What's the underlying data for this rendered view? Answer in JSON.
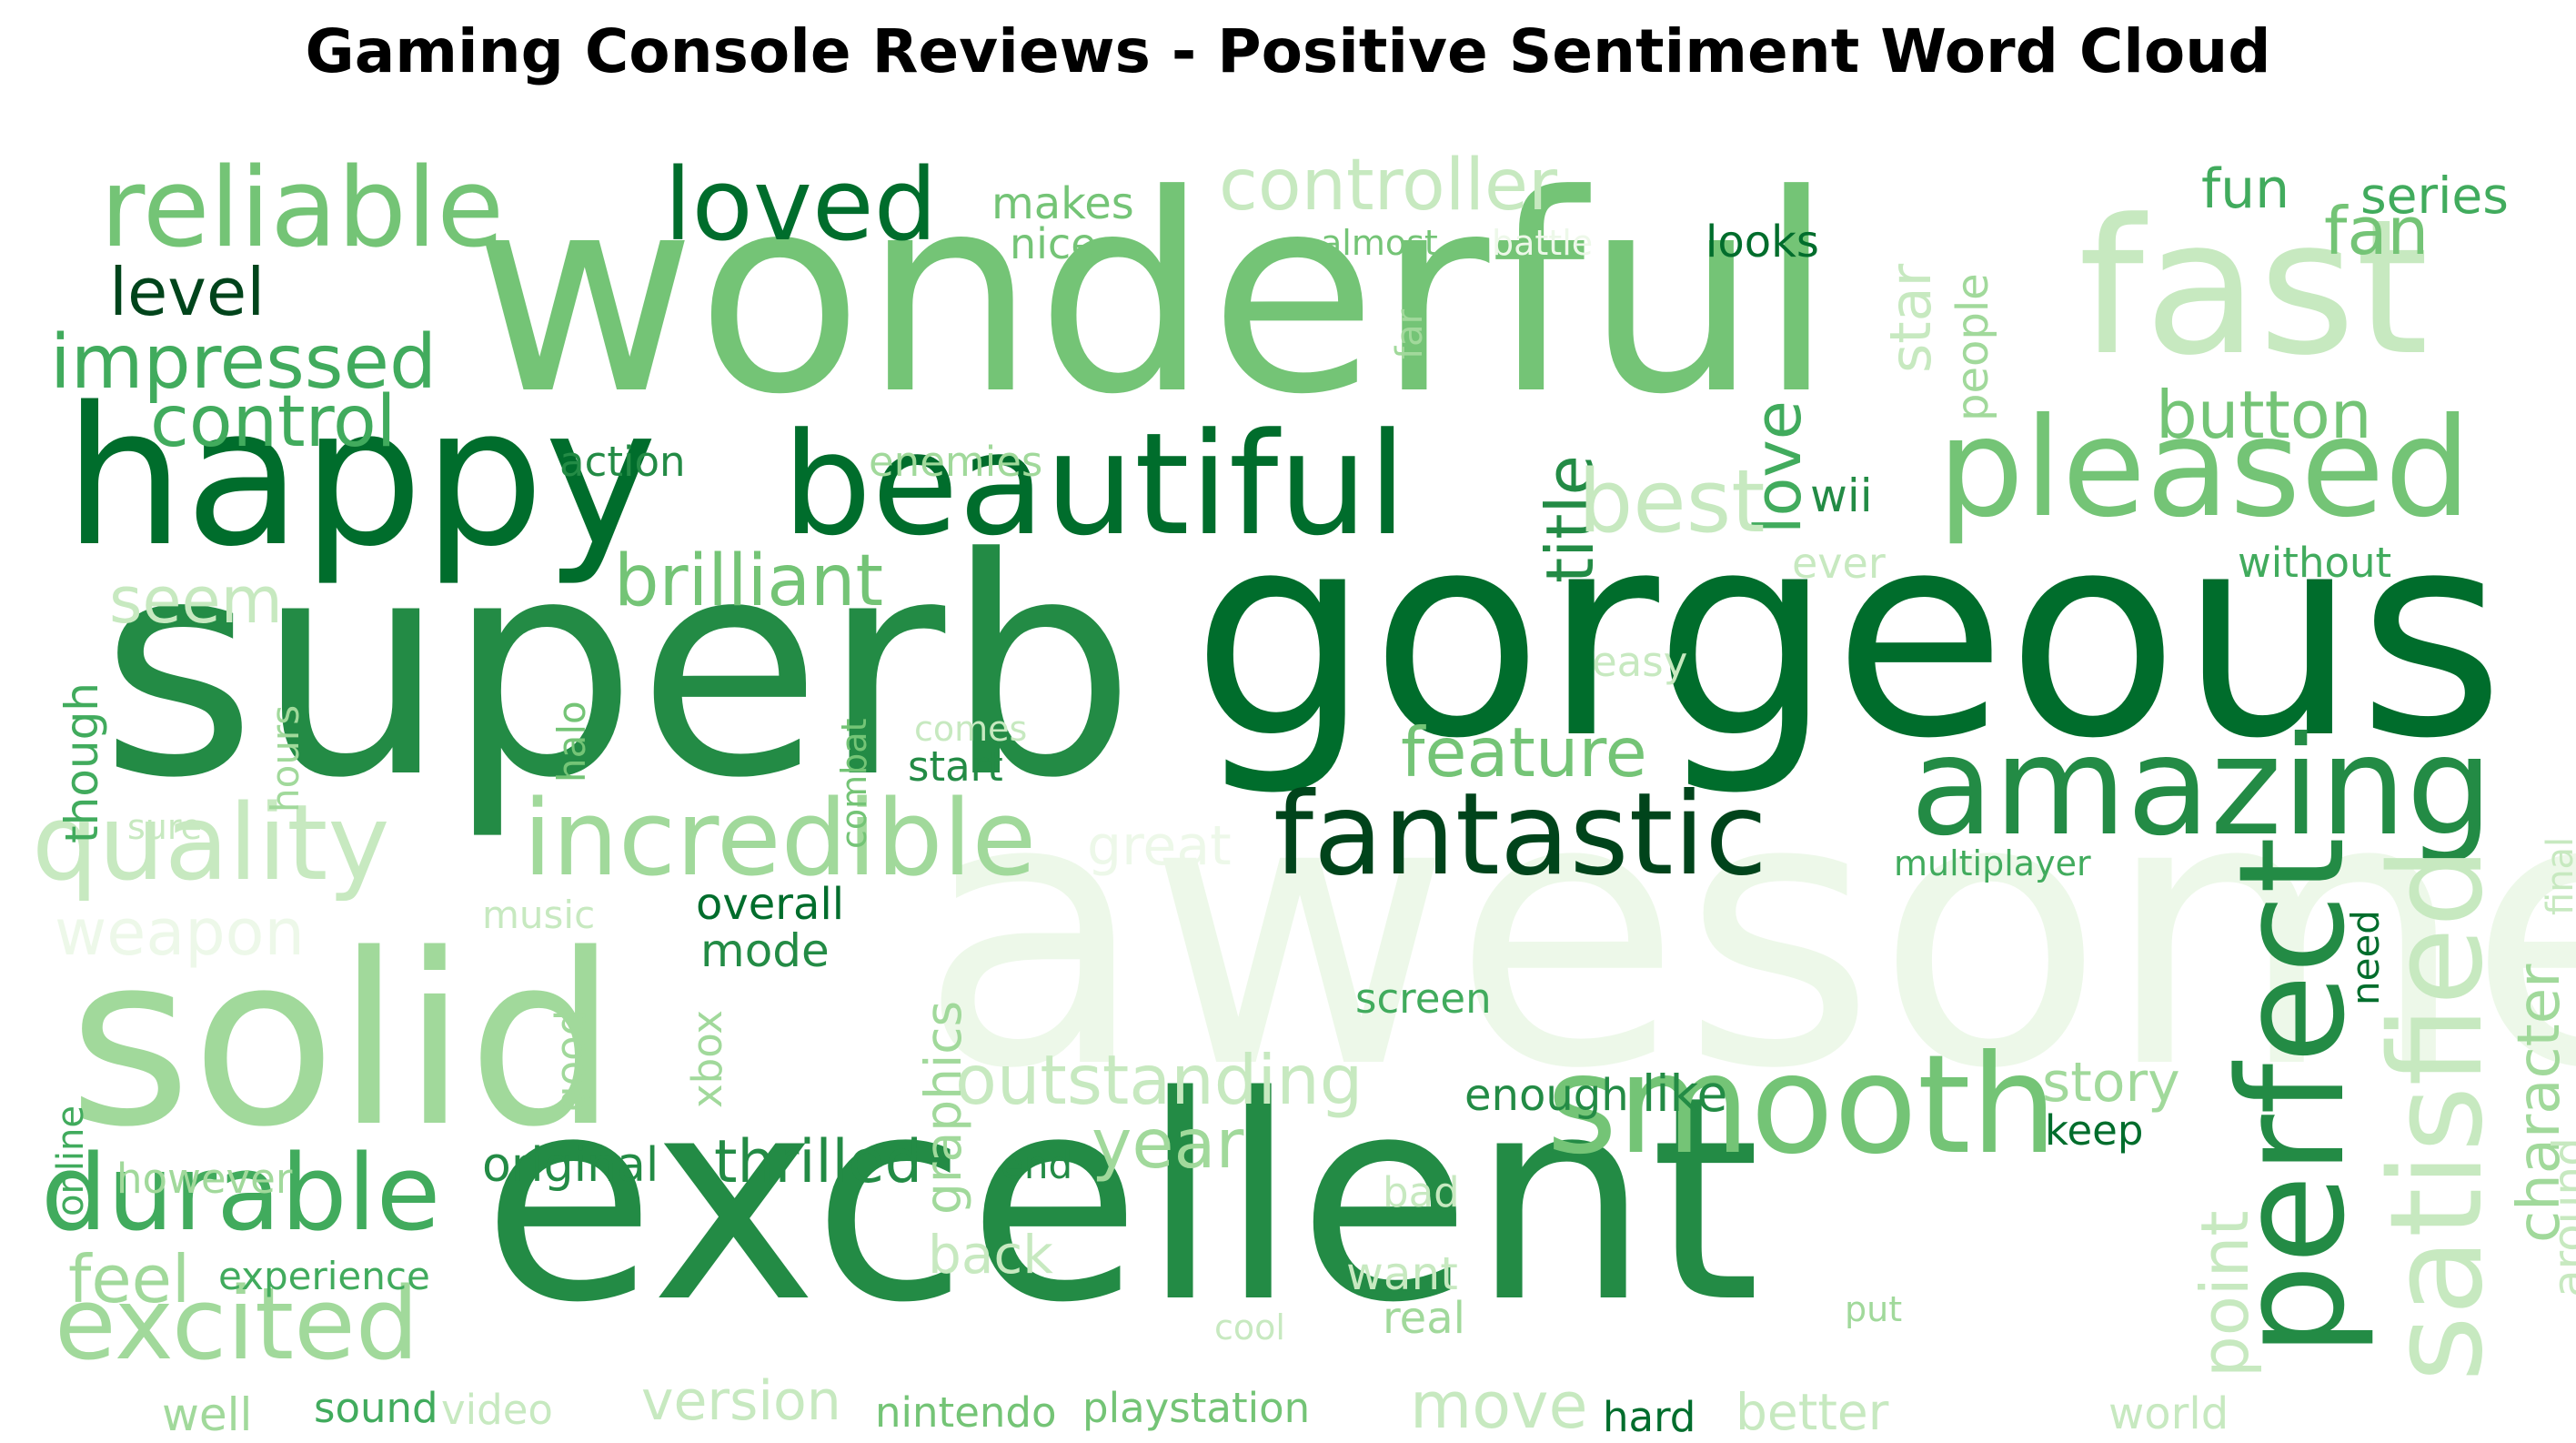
{
  "title": "Gaming Console Reviews - Positive Sentiment Word Cloud",
  "palette": [
    "#edf8e9",
    "#c7e9c0",
    "#a1d99b",
    "#74c476",
    "#41ab5d",
    "#238b45",
    "#006d2c",
    "#00441b"
  ],
  "words": [
    {
      "text": "awesome",
      "tone": 0
    },
    {
      "text": "gorgeous",
      "tone": 6
    },
    {
      "text": "superb",
      "tone": 5
    },
    {
      "text": "excellent",
      "tone": 5
    },
    {
      "text": "wonderful",
      "tone": 3
    },
    {
      "text": "solid",
      "tone": 2
    },
    {
      "text": "happy",
      "tone": 6
    },
    {
      "text": "fast",
      "tone": 1
    },
    {
      "text": "beautiful",
      "tone": 6
    },
    {
      "text": "perfect",
      "tone": 5
    },
    {
      "text": "pleased",
      "tone": 3
    },
    {
      "text": "amazing",
      "tone": 5
    },
    {
      "text": "smooth",
      "tone": 3
    },
    {
      "text": "satisfied",
      "tone": 1
    },
    {
      "text": "fantastic",
      "tone": 7
    },
    {
      "text": "reliable",
      "tone": 3
    },
    {
      "text": "loved",
      "tone": 6
    },
    {
      "text": "quality",
      "tone": 1
    },
    {
      "text": "incredible",
      "tone": 2
    },
    {
      "text": "durable",
      "tone": 4
    },
    {
      "text": "excited",
      "tone": 2
    },
    {
      "text": "controller",
      "tone": 1
    },
    {
      "text": "impressed",
      "tone": 4
    },
    {
      "text": "control",
      "tone": 4
    },
    {
      "text": "level",
      "tone": 7
    },
    {
      "text": "brilliant",
      "tone": 3
    },
    {
      "text": "title",
      "tone": 5
    },
    {
      "text": "love",
      "tone": 4
    },
    {
      "text": "best",
      "tone": 1
    },
    {
      "text": "button",
      "tone": 3
    },
    {
      "text": "feature",
      "tone": 3
    },
    {
      "text": "outstanding",
      "tone": 1
    },
    {
      "text": "character",
      "tone": 2
    },
    {
      "text": "thrilled",
      "tone": 5
    },
    {
      "text": "year",
      "tone": 2
    },
    {
      "text": "story",
      "tone": 2
    },
    {
      "text": "fan",
      "tone": 3
    },
    {
      "text": "series",
      "tone": 4
    },
    {
      "text": "fun",
      "tone": 4
    },
    {
      "text": "weapon",
      "tone": 0
    },
    {
      "text": "feel",
      "tone": 2
    },
    {
      "text": "star",
      "tone": 1
    },
    {
      "text": "seem",
      "tone": 1
    },
    {
      "text": "point",
      "tone": 1
    },
    {
      "text": "graphics",
      "tone": 2
    },
    {
      "text": "around",
      "tone": 1
    },
    {
      "text": "move",
      "tone": 1
    },
    {
      "text": "back",
      "tone": 1
    },
    {
      "text": "version",
      "tone": 1
    },
    {
      "text": "wii",
      "tone": 5
    },
    {
      "text": "though",
      "tone": 4
    },
    {
      "text": "original",
      "tone": 5
    },
    {
      "text": "mode",
      "tone": 5
    },
    {
      "text": "overall",
      "tone": 6
    },
    {
      "text": "like",
      "tone": 5
    },
    {
      "text": "enough",
      "tone": 5
    },
    {
      "text": "makes",
      "tone": 3
    },
    {
      "text": "nice",
      "tone": 3
    },
    {
      "text": "looks",
      "tone": 6
    },
    {
      "text": "action",
      "tone": 5
    },
    {
      "text": "enemies",
      "tone": 2
    },
    {
      "text": "people",
      "tone": 2
    },
    {
      "text": "ever",
      "tone": 1
    },
    {
      "text": "without",
      "tone": 4
    },
    {
      "text": "easy",
      "tone": 1
    },
    {
      "text": "hours",
      "tone": 2
    },
    {
      "text": "halo",
      "tone": 3
    },
    {
      "text": "combat",
      "tone": 3
    },
    {
      "text": "comes",
      "tone": 1
    },
    {
      "text": "start",
      "tone": 5
    },
    {
      "text": "great",
      "tone": 0
    },
    {
      "text": "multiplayer",
      "tone": 4
    },
    {
      "text": "need",
      "tone": 6
    },
    {
      "text": "final",
      "tone": 1
    },
    {
      "text": "music",
      "tone": 1
    },
    {
      "text": "good",
      "tone": 2
    },
    {
      "text": "xbox",
      "tone": 2
    },
    {
      "text": "screen",
      "tone": 4
    },
    {
      "text": "online",
      "tone": 4
    },
    {
      "text": "however",
      "tone": 2
    },
    {
      "text": "end",
      "tone": 5
    },
    {
      "text": "keep",
      "tone": 6
    },
    {
      "text": "bad",
      "tone": 1
    },
    {
      "text": "want",
      "tone": 1
    },
    {
      "text": "experience",
      "tone": 4
    },
    {
      "text": "real",
      "tone": 2
    },
    {
      "text": "cool",
      "tone": 1
    },
    {
      "text": "put",
      "tone": 2
    },
    {
      "text": "well",
      "tone": 2
    },
    {
      "text": "sound",
      "tone": 4
    },
    {
      "text": "video",
      "tone": 1
    },
    {
      "text": "nintendo",
      "tone": 3
    },
    {
      "text": "playstation",
      "tone": 3
    },
    {
      "text": "hard",
      "tone": 6
    },
    {
      "text": "better",
      "tone": 1
    },
    {
      "text": "world",
      "tone": 1
    },
    {
      "text": "almost",
      "tone": 3
    },
    {
      "text": "battle",
      "tone": 0
    },
    {
      "text": "far",
      "tone": 2
    },
    {
      "text": "sure",
      "tone": 1
    }
  ]
}
